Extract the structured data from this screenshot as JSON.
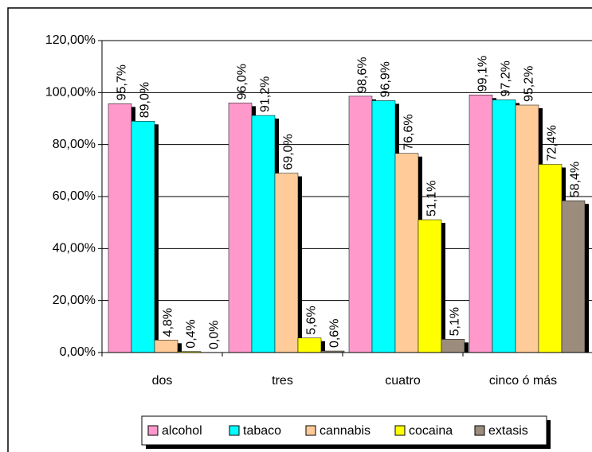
{
  "chart_data": {
    "type": "bar",
    "categories": [
      "dos",
      "tres",
      "cuatro",
      "cinco ó más"
    ],
    "series": [
      {
        "name": "alcohol",
        "color": "#ff99cc",
        "values": [
          95.7,
          96.0,
          98.6,
          99.1
        ],
        "value_labels": [
          "95,7%",
          "96,0%",
          "98,6%",
          "99,1%"
        ]
      },
      {
        "name": "tabaco",
        "color": "#00ffff",
        "values": [
          89.0,
          91.2,
          96.9,
          97.2
        ],
        "value_labels": [
          "89,0%",
          "91,2%",
          "96,9%",
          "97,2%"
        ]
      },
      {
        "name": "cannabis",
        "color": "#ffcc99",
        "values": [
          4.8,
          69.0,
          76.6,
          95.2
        ],
        "value_labels": [
          "4,8%",
          "69,0%",
          "76,6%",
          "95,2%"
        ]
      },
      {
        "name": "cocaina",
        "color": "#ffff00",
        "values": [
          0.4,
          5.6,
          51.1,
          72.4
        ],
        "value_labels": [
          "0,4%",
          "5,6%",
          "51,1%",
          "72,4%"
        ]
      },
      {
        "name": "extasis",
        "color": "#9c8c7c",
        "values": [
          0.0,
          0.6,
          5.1,
          58.4
        ],
        "value_labels": [
          "0,0%",
          "0,6%",
          "5,1%",
          "58,4%"
        ]
      }
    ],
    "ylim": [
      0,
      120
    ],
    "yticks": [
      {
        "value": 0,
        "label": "0,00%"
      },
      {
        "value": 20,
        "label": "20,00%"
      },
      {
        "value": 40,
        "label": "40,00%"
      },
      {
        "value": 60,
        "label": "60,00%"
      },
      {
        "value": 80,
        "label": "80,00%"
      },
      {
        "value": 100,
        "label": "100,00%"
      },
      {
        "value": 120,
        "label": "120,00%"
      }
    ],
    "grid": true,
    "legend": "bottom"
  }
}
